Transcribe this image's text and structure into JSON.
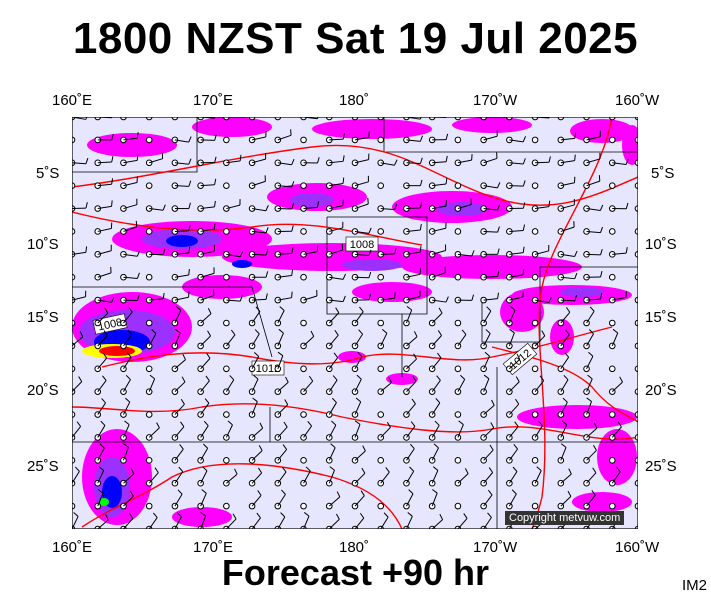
{
  "header": {
    "title": "1800 NZST Sat 19 Jul 2025"
  },
  "footer": {
    "forecast_label": "Forecast +90 hr",
    "corner_tag": "IM2"
  },
  "credit": {
    "text": "Copyright metvuw.com"
  },
  "axes": {
    "lon_labels": [
      "160˚E",
      "170˚E",
      "180˚",
      "170˚W",
      "160˚W"
    ],
    "lat_labels": [
      "5˚S",
      "10˚S",
      "15˚S",
      "20˚S",
      "25˚S"
    ]
  },
  "isobars": [
    {
      "label": "1008"
    },
    {
      "label": "1008"
    },
    {
      "label": "1012"
    },
    {
      "label": "1012"
    }
  ],
  "colors": {
    "background": "#e6e6ff",
    "isobar": "#ff0000",
    "rain_light": "#ff00ff",
    "rain_mid": "#9b30ff",
    "rain_heavy": "#0000ff",
    "rain_extreme": "#ff0000",
    "wind_barb": "#000000"
  }
}
